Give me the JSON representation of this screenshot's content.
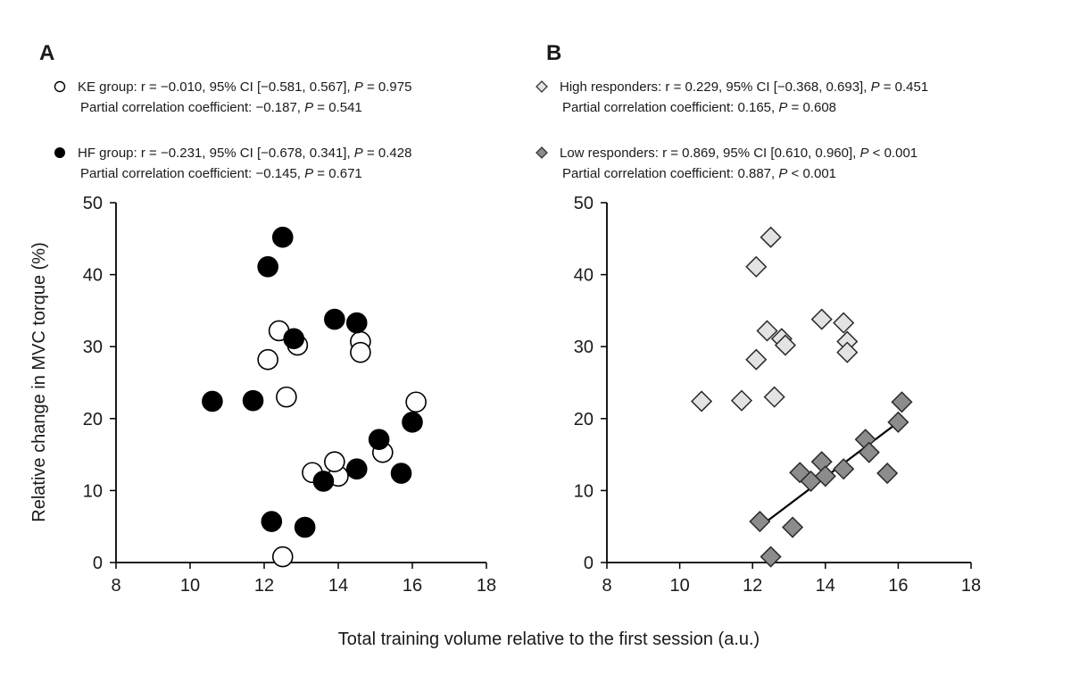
{
  "chart_data": [
    {
      "type": "scatter",
      "panel": "A",
      "xlabel": "Total training volume relative to the first session (a.u.)",
      "ylabel": "Relative change in MVC torque (%)",
      "xlim": [
        8,
        18
      ],
      "ylim": [
        0,
        50
      ],
      "xticks": [
        "8",
        "10",
        "12",
        "14",
        "16",
        "18"
      ],
      "yticks": [
        "0",
        "10",
        "20",
        "30",
        "40",
        "50"
      ],
      "grid": false,
      "series": [
        {
          "name": "KE group",
          "marker": "circle-open",
          "fill": "#ffffff",
          "stats_line1": "r = −0.010, 95% CI [−0.581, 0.567], ",
          "p_line1": " = 0.975",
          "stats_line2": "Partial correlation coefficient: −0.187, ",
          "p_line2": " = 0.541",
          "points": [
            [
              12.1,
              28.2
            ],
            [
              12.4,
              32.2
            ],
            [
              12.6,
              23.0
            ],
            [
              12.9,
              30.2
            ],
            [
              12.5,
              0.8
            ],
            [
              13.3,
              12.5
            ],
            [
              14.0,
              12.0
            ],
            [
              13.9,
              14.0
            ],
            [
              14.6,
              30.7
            ],
            [
              14.6,
              29.2
            ],
            [
              15.2,
              15.3
            ],
            [
              16.1,
              22.3
            ]
          ]
        },
        {
          "name": "HF group",
          "marker": "circle-filled",
          "fill": "#000000",
          "stats_line1": "r = −0.231, 95% CI [−0.678, 0.341], ",
          "p_line1": " = 0.428",
          "stats_line2": "Partial correlation coefficient: −0.145, ",
          "p_line2": " = 0.671",
          "points": [
            [
              10.6,
              22.4
            ],
            [
              11.7,
              22.5
            ],
            [
              12.1,
              41.1
            ],
            [
              12.5,
              45.2
            ],
            [
              12.8,
              31.1
            ],
            [
              12.2,
              5.7
            ],
            [
              13.1,
              4.9
            ],
            [
              13.6,
              11.3
            ],
            [
              13.9,
              33.8
            ],
            [
              14.5,
              33.3
            ],
            [
              14.5,
              13.0
            ],
            [
              15.1,
              17.1
            ],
            [
              15.7,
              12.4
            ],
            [
              16.0,
              19.5
            ]
          ]
        }
      ]
    },
    {
      "type": "scatter",
      "panel": "B",
      "xlim": [
        8,
        18
      ],
      "ylim": [
        0,
        50
      ],
      "xticks": [
        "8",
        "10",
        "12",
        "14",
        "16",
        "18"
      ],
      "yticks": [
        "0",
        "10",
        "20",
        "30",
        "40",
        "50"
      ],
      "grid": false,
      "series": [
        {
          "name": "High responders",
          "marker": "diamond",
          "fill": "#e3e3e3",
          "stats_line1": "r = 0.229, 95% CI [−0.368, 0.693], ",
          "p_line1": " = 0.451",
          "stats_line2": "Partial correlation coefficient: 0.165, ",
          "p_line2": " = 0.608",
          "points": [
            [
              10.6,
              22.4
            ],
            [
              11.7,
              22.5
            ],
            [
              12.1,
              41.1
            ],
            [
              12.1,
              28.2
            ],
            [
              12.4,
              32.2
            ],
            [
              12.5,
              45.2
            ],
            [
              12.6,
              23.0
            ],
            [
              12.8,
              31.1
            ],
            [
              12.9,
              30.2
            ],
            [
              13.9,
              33.8
            ],
            [
              14.5,
              33.3
            ],
            [
              14.6,
              30.7
            ],
            [
              14.6,
              29.2
            ]
          ]
        },
        {
          "name": "Low responders",
          "marker": "diamond",
          "fill": "#8c8c8c",
          "stats_line1": "r = 0.869, 95% CI [0.610, 0.960], ",
          "p_line1": " < 0.001",
          "stats_line2": "Partial correlation coefficient: 0.887, ",
          "p_line2": " < 0.001",
          "points": [
            [
              12.2,
              5.7
            ],
            [
              12.5,
              0.8
            ],
            [
              13.1,
              4.9
            ],
            [
              13.3,
              12.5
            ],
            [
              13.6,
              11.3
            ],
            [
              13.9,
              14.0
            ],
            [
              14.0,
              12.0
            ],
            [
              14.5,
              13.0
            ],
            [
              15.1,
              17.1
            ],
            [
              15.2,
              15.3
            ],
            [
              15.7,
              12.4
            ],
            [
              16.0,
              19.5
            ],
            [
              16.1,
              22.3
            ]
          ],
          "trendline": [
            [
              12.2,
              5.0
            ],
            [
              16.0,
              19.5
            ]
          ]
        }
      ]
    }
  ],
  "p_symbol": "P"
}
